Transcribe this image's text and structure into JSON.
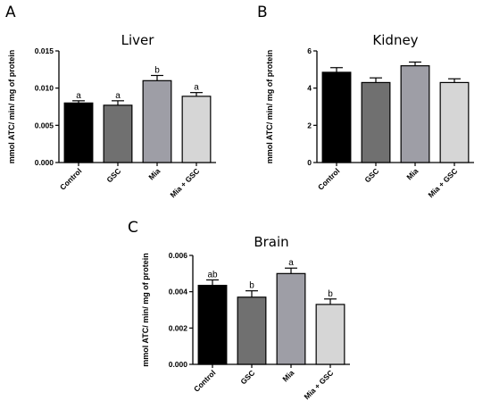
{
  "chart_data": [
    {
      "panel": "A",
      "type": "bar",
      "title": "Liver",
      "ylabel": "mmol ATC/ min/ mg of protein",
      "categories": [
        "Control",
        "GSC",
        "Mia",
        "Mia + GSC"
      ],
      "values": [
        0.008,
        0.0077,
        0.011,
        0.0089
      ],
      "errors": [
        0.0003,
        0.0006,
        0.0007,
        0.0005
      ],
      "significance": [
        "a",
        "a",
        "b",
        "a"
      ],
      "colors": [
        "#000000",
        "#707070",
        "#9e9ea6",
        "#d6d6d6"
      ],
      "ylim": [
        0,
        0.015
      ],
      "yticks": [
        0.0,
        0.005,
        0.01,
        0.015
      ],
      "ytick_labels": [
        "0.000",
        "0.005",
        "0.010",
        "0.015"
      ],
      "grid": false
    },
    {
      "panel": "B",
      "type": "bar",
      "title": "Kidney",
      "ylabel": "mmol ATC/ min/ mg of protein",
      "categories": [
        "Control",
        "GSC",
        "Mia",
        "Mia + GSC"
      ],
      "values": [
        4.85,
        4.3,
        5.2,
        4.3
      ],
      "errors": [
        0.25,
        0.25,
        0.2,
        0.2
      ],
      "significance": [
        "",
        "",
        "",
        ""
      ],
      "colors": [
        "#000000",
        "#707070",
        "#9e9ea6",
        "#d6d6d6"
      ],
      "ylim": [
        0,
        6
      ],
      "yticks": [
        0,
        2,
        4,
        6
      ],
      "ytick_labels": [
        "0",
        "2",
        "4",
        "6"
      ],
      "grid": false
    },
    {
      "panel": "C",
      "type": "bar",
      "title": "Brain",
      "ylabel": "mmol ATC/ min/ mg of protein",
      "categories": [
        "Control",
        "GSC",
        "Mia",
        "Mia + GSC"
      ],
      "values": [
        0.00435,
        0.0037,
        0.005,
        0.0033
      ],
      "errors": [
        0.0003,
        0.00035,
        0.0003,
        0.0003
      ],
      "significance": [
        "ab",
        "b",
        "a",
        "b"
      ],
      "colors": [
        "#000000",
        "#707070",
        "#9e9ea6",
        "#d6d6d6"
      ],
      "ylim": [
        0,
        0.006
      ],
      "yticks": [
        0.0,
        0.002,
        0.004,
        0.006
      ],
      "ytick_labels": [
        "0.000",
        "0.002",
        "0.004",
        "0.006"
      ],
      "grid": false
    }
  ]
}
